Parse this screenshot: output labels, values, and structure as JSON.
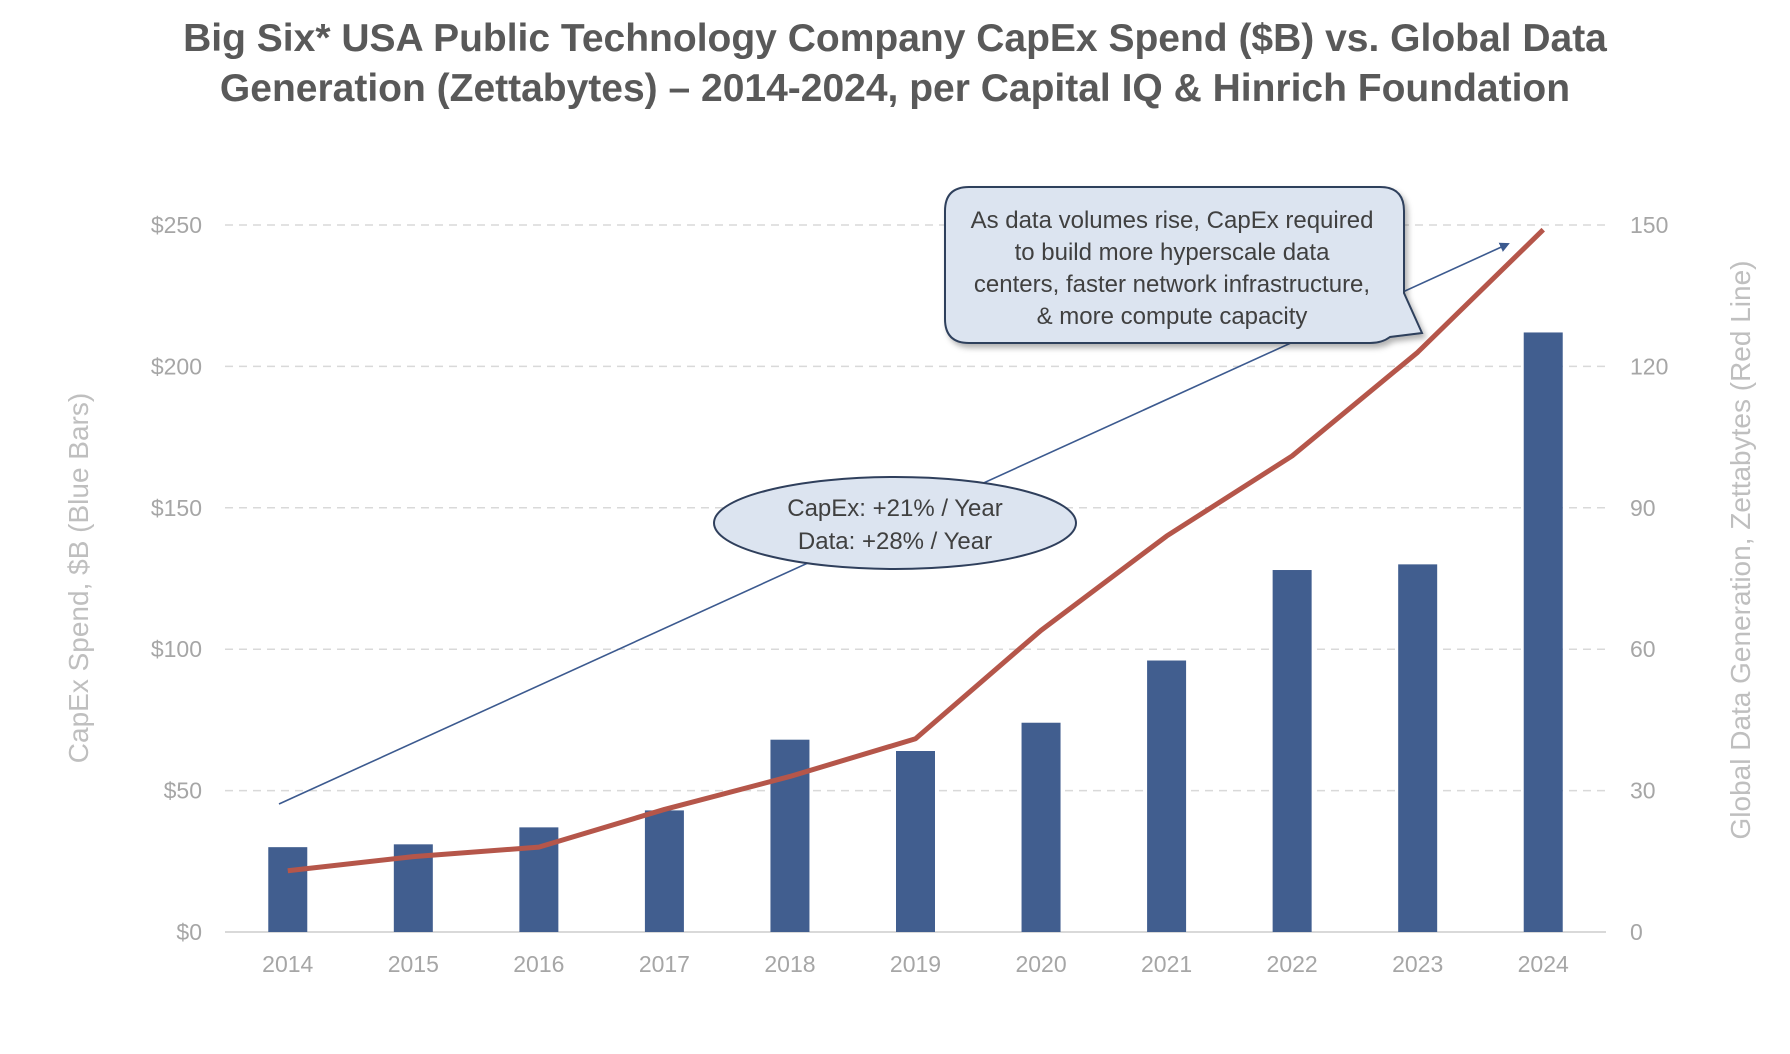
{
  "chart_data": {
    "type": "bar+line",
    "title_lines": [
      "Big Six* USA Public Technology Company CapEx Spend ($B) vs. Global Data",
      "Generation (Zettabytes) – 2014-2024, per Capital IQ & Hinrich Foundation"
    ],
    "categories": [
      "2014",
      "2015",
      "2016",
      "2017",
      "2018",
      "2019",
      "2020",
      "2021",
      "2022",
      "2023",
      "2024"
    ],
    "series": [
      {
        "name": "CapEx Spend, $B (Blue Bars)",
        "type": "bar",
        "axis": "left",
        "color": "#415e8f",
        "values": [
          30,
          31,
          37,
          43,
          68,
          64,
          74,
          96,
          128,
          130,
          212
        ]
      },
      {
        "name": "Global Data Generation, Zettabytes (Red Line)",
        "type": "line",
        "axis": "right",
        "color": "#b5564a",
        "values": [
          13,
          16,
          18,
          26,
          33,
          41,
          64,
          84,
          101,
          123,
          149
        ]
      }
    ],
    "left_axis": {
      "label": "CapEx Spend, $B (Blue Bars)",
      "ylim": [
        0,
        250
      ],
      "ticks": [
        "$0",
        "$50",
        "$100",
        "$150",
        "$200",
        "$250"
      ]
    },
    "right_axis": {
      "label": "Global Data Generation, Zettabytes (Red Line)",
      "ylim": [
        0,
        150
      ],
      "ticks": [
        "0",
        "30",
        "60",
        "90",
        "120",
        "150"
      ]
    },
    "grid": "horizontal dashed",
    "annotations": {
      "growth": [
        "CapEx: +21% / Year",
        "Data: +28% / Year"
      ],
      "callout": [
        "As data volumes rise, CapEx required",
        "to build more hyperscale data",
        "centers, faster network infrastructure,",
        "& more compute capacity"
      ]
    },
    "colors": {
      "bar": "#415e8f",
      "line": "#b5564a",
      "callout_fill": "#dce4f0",
      "callout_border": "#2f3f5c",
      "trend_arrow": "#3c5a8f"
    }
  }
}
